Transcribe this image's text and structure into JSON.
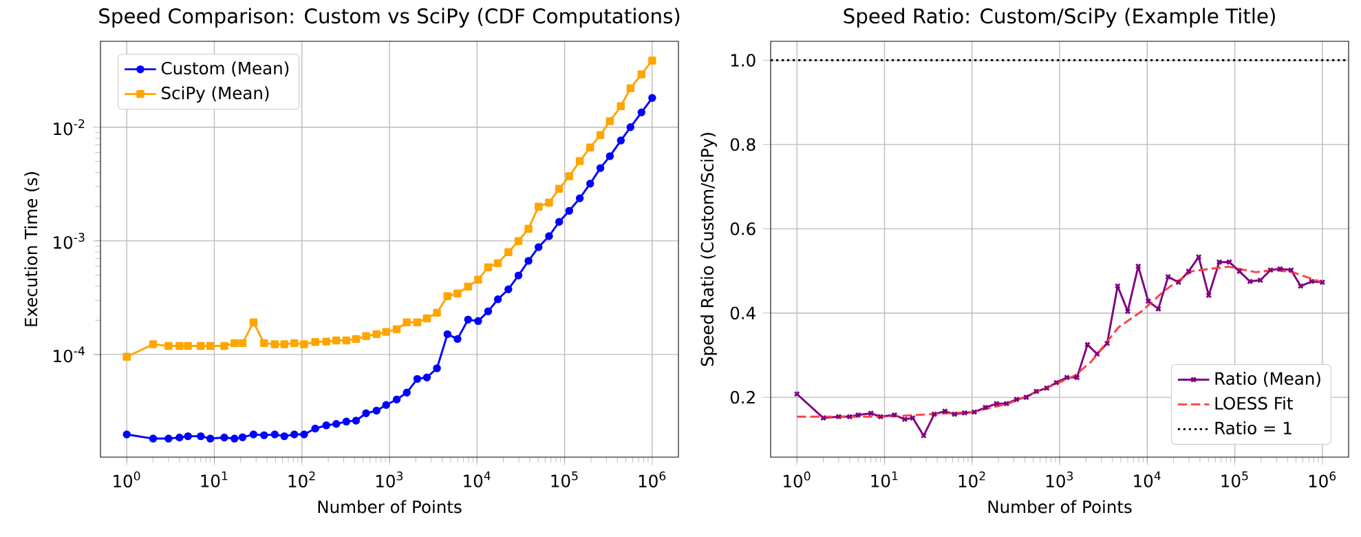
{
  "chart_data": [
    {
      "type": "line",
      "title": "Speed Comparison: Custom vs SciPy (CDF Computations)",
      "xlabel": "Number of Points",
      "ylabel": "Execution Time (s)",
      "log": "xy",
      "grid": true,
      "legend": "top left",
      "xlim": [
        0.501,
        1995000
      ],
      "ylim": [
        1.25e-05,
        0.057
      ],
      "xticks": [
        {
          "value": 1,
          "label": "10$^{0}$"
        },
        {
          "value": 10,
          "label": "10$^{1}$"
        },
        {
          "value": 100,
          "label": "10$^{2}$"
        },
        {
          "value": 1000,
          "label": "10$^{3}$"
        },
        {
          "value": 10000,
          "label": "10$^{4}$"
        },
        {
          "value": 100000,
          "label": "10$^{5}$"
        },
        {
          "value": 1000000,
          "label": "10$^{6}$"
        }
      ],
      "yticks": [
        {
          "value": 0.0001,
          "label": "10$^{-4}$"
        },
        {
          "value": 0.001,
          "label": "10$^{-3}$"
        },
        {
          "value": 0.01,
          "label": "10$^{-2}$"
        }
      ],
      "x": [
        1,
        2,
        3,
        4,
        5,
        7,
        9,
        13,
        17,
        21,
        28,
        37,
        49,
        63,
        82,
        106,
        142,
        190,
        247,
        322,
        415,
        541,
        712,
        917,
        1210,
        1577,
        2078,
        2676,
        3487,
        4595,
        5987,
        7900,
        10300,
        13400,
        17300,
        22800,
        29700,
        38700,
        50400,
        66400,
        86600,
        113000,
        149000,
        196000,
        256000,
        329000,
        439000,
        565000,
        755000,
        1000000
      ],
      "series": [
        {
          "name": "Custom (Mean)",
          "color": "#0000ff",
          "marker": "circle",
          "line_style": "solid",
          "values": [
            1.98e-05,
            1.82e-05,
            1.82e-05,
            1.86e-05,
            1.91e-05,
            1.91e-05,
            1.82e-05,
            1.86e-05,
            1.82e-05,
            1.87e-05,
            1.98e-05,
            1.95e-05,
            1.98e-05,
            1.91e-05,
            1.98e-05,
            1.98e-05,
            2.23e-05,
            2.38e-05,
            2.45e-05,
            2.57e-05,
            2.62e-05,
            3.04e-05,
            3.21e-05,
            3.6e-05,
            4.02e-05,
            4.62e-05,
            6.1e-05,
            6.28e-05,
            7.57e-05,
            0.000151,
            0.000137,
            0.000203,
            0.000197,
            0.00024,
            0.000306,
            0.000375,
            0.000496,
            0.000667,
            0.000881,
            0.0011,
            0.00147,
            0.00184,
            0.00237,
            0.00319,
            0.00437,
            0.00556,
            0.00764,
            0.01,
            0.0135,
            0.0181
          ]
        },
        {
          "name": "SciPy (Mean)",
          "color": "#ffa500",
          "marker": "square",
          "line_style": "solid",
          "values": [
            9.55e-05,
            0.000123,
            0.000119,
            0.000119,
            0.000119,
            0.000119,
            0.000119,
            0.000119,
            0.000126,
            0.000126,
            0.000192,
            0.000126,
            0.000123,
            0.000123,
            0.000126,
            0.000123,
            0.000129,
            0.00013,
            0.000133,
            0.000133,
            0.000137,
            0.000145,
            0.000151,
            0.000158,
            0.000167,
            0.000192,
            0.000192,
            0.000208,
            0.000233,
            0.000326,
            0.000345,
            0.000396,
            0.000456,
            0.000586,
            0.000637,
            0.000796,
            0.000996,
            0.00128,
            0.002,
            0.00217,
            0.00287,
            0.0037,
            0.00503,
            0.00664,
            0.00853,
            0.0113,
            0.0153,
            0.022,
            0.0292,
            0.0386
          ]
        }
      ]
    },
    {
      "type": "line",
      "title": "Speed Ratio: Custom/SciPy (Example Title)",
      "xlabel": "Number of Points",
      "ylabel": "Speed Ratio (Custom/SciPy)",
      "log": "x",
      "grid": true,
      "legend": "bottom right",
      "xlim": [
        0.501,
        1995000
      ],
      "ylim": [
        0.058,
        1.045
      ],
      "xticks": [
        {
          "value": 1,
          "label": "10$^{0}$"
        },
        {
          "value": 10,
          "label": "10$^{1}$"
        },
        {
          "value": 100,
          "label": "10$^{2}$"
        },
        {
          "value": 1000,
          "label": "10$^{3}$"
        },
        {
          "value": 10000,
          "label": "10$^{4}$"
        },
        {
          "value": 100000,
          "label": "10$^{5}$"
        },
        {
          "value": 1000000,
          "label": "10$^{6}$"
        }
      ],
      "yticks": [
        {
          "value": 0.2,
          "label": "0.2"
        },
        {
          "value": 0.4,
          "label": "0.4"
        },
        {
          "value": 0.6,
          "label": "0.6"
        },
        {
          "value": 0.8,
          "label": "0.8"
        },
        {
          "value": 1.0,
          "label": "1.0"
        }
      ],
      "x": [
        1,
        2,
        3,
        4,
        5,
        7,
        9,
        13,
        17,
        21,
        28,
        37,
        49,
        63,
        82,
        106,
        142,
        190,
        247,
        322,
        415,
        541,
        712,
        917,
        1210,
        1577,
        2078,
        2676,
        3487,
        4595,
        5987,
        7900,
        10300,
        13400,
        17300,
        22800,
        29700,
        38700,
        50400,
        66400,
        86600,
        113000,
        149000,
        196000,
        256000,
        329000,
        439000,
        565000,
        755000,
        1000000
      ],
      "series": [
        {
          "name": "Ratio (Mean)",
          "color": "#800080",
          "marker": "cross",
          "line_style": "solid",
          "values": [
            0.208,
            0.151,
            0.154,
            0.154,
            0.158,
            0.162,
            0.154,
            0.158,
            0.148,
            0.151,
            0.109,
            0.16,
            0.167,
            0.16,
            0.163,
            0.165,
            0.176,
            0.185,
            0.185,
            0.195,
            0.2,
            0.214,
            0.222,
            0.235,
            0.247,
            0.247,
            0.325,
            0.303,
            0.328,
            0.464,
            0.404,
            0.511,
            0.428,
            0.41,
            0.486,
            0.473,
            0.499,
            0.533,
            0.442,
            0.521,
            0.521,
            0.499,
            0.475,
            0.478,
            0.502,
            0.505,
            0.502,
            0.464,
            0.475,
            0.473
          ]
        },
        {
          "name": "LOESS Fit",
          "color": "#ff4040",
          "marker": "none",
          "line_style": "dashed",
          "x": [
            1,
            10,
            100,
            260,
            870,
            1500,
            2300,
            4700,
            8600,
            15700,
            32000,
            52000,
            85000,
            174000,
            282000,
            456000,
            1000000
          ],
          "values": [
            0.154,
            0.154,
            0.165,
            0.185,
            0.23,
            0.252,
            0.285,
            0.366,
            0.404,
            0.453,
            0.499,
            0.505,
            0.51,
            0.497,
            0.502,
            0.497,
            0.473
          ]
        }
      ],
      "ref_lines": [
        {
          "axis": "y",
          "value": 1.0,
          "label": "Ratio = 1",
          "color": "#000000",
          "line_style": "dotted"
        }
      ]
    }
  ]
}
